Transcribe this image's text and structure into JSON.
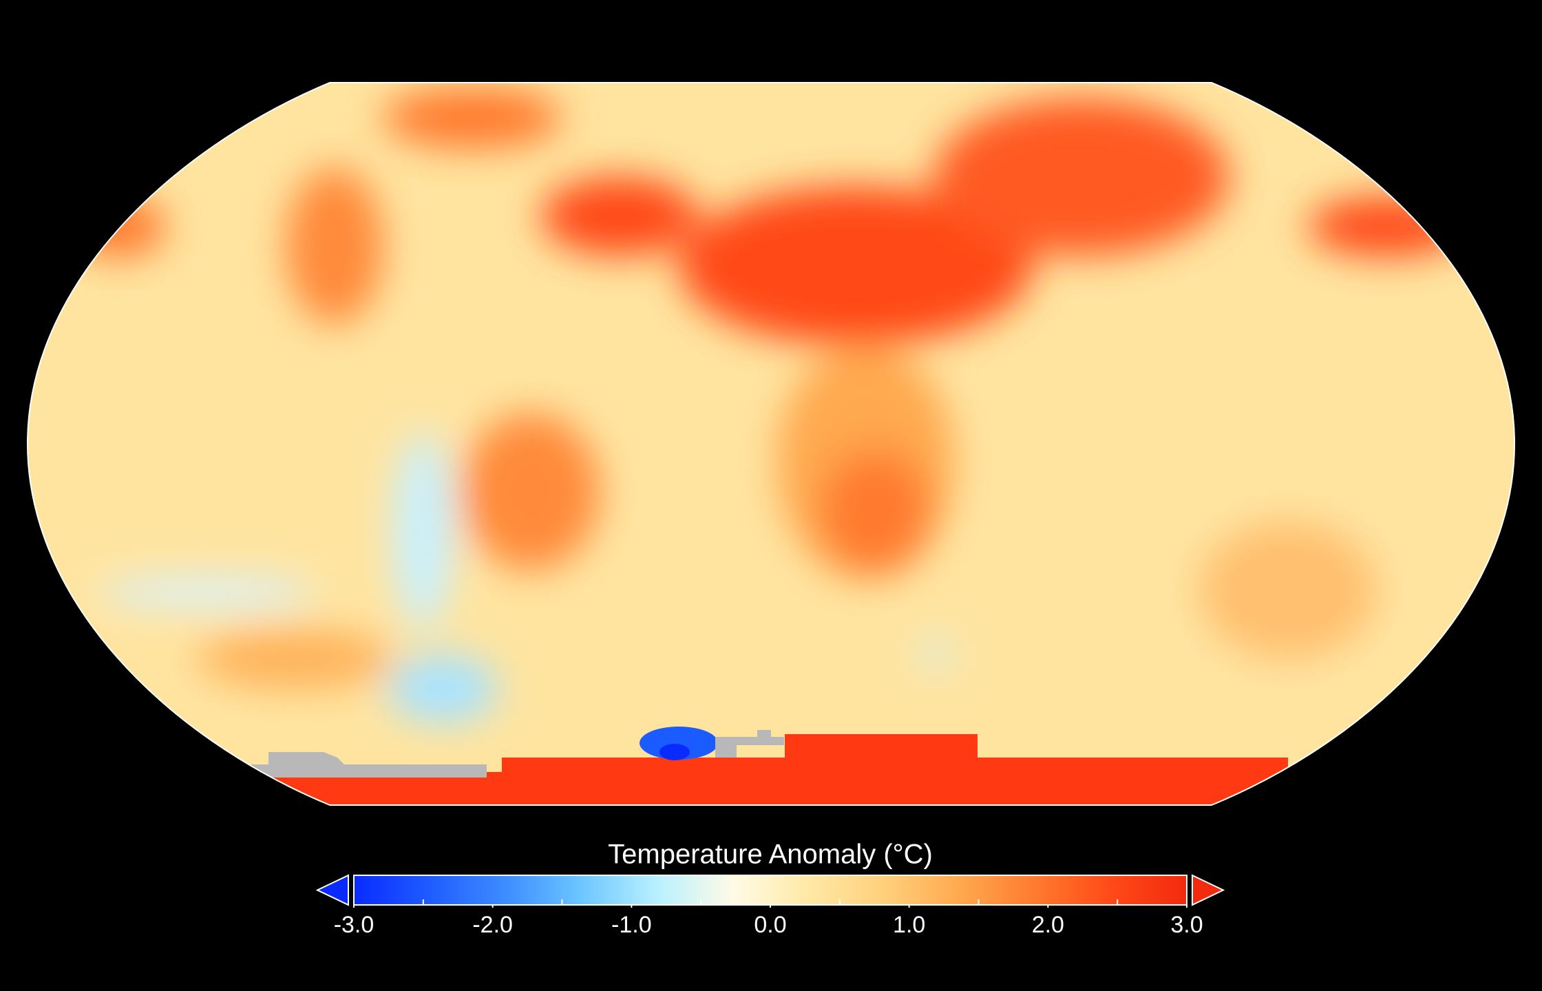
{
  "colorbar": {
    "title": "Temperature Anomaly (°C)",
    "range": [
      -3,
      3
    ],
    "ticks": [
      {
        "value": -3,
        "label": "-3.0"
      },
      {
        "value": -2,
        "label": "-2.0"
      },
      {
        "value": -1,
        "label": "-1.0"
      },
      {
        "value": 0,
        "label": "0.0"
      },
      {
        "value": 1,
        "label": "1.0"
      },
      {
        "value": 2,
        "label": "2.0"
      },
      {
        "value": 3,
        "label": "3.0"
      }
    ],
    "minor_ticks": [
      -2.5,
      -1.5,
      -0.5,
      0.5,
      1.5,
      2.5
    ],
    "colors": [
      "#0a2bff",
      "#1f5cff",
      "#3d8dff",
      "#6cc6ff",
      "#b9f0ff",
      "#fffbe6",
      "#ffe9a6",
      "#ffd07c",
      "#ffa94f",
      "#ff7a2e",
      "#ff4a18",
      "#f22a0e"
    ],
    "extend": "both"
  }
}
